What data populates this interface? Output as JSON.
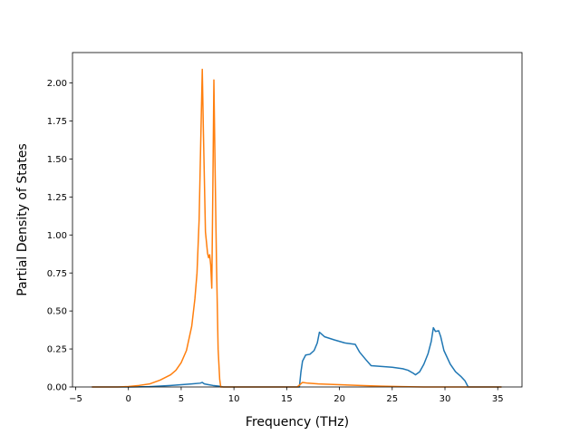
{
  "chart_data": {
    "type": "line",
    "title": "",
    "xlabel": "Frequency (THz)",
    "ylabel": "Partial Density of States",
    "xlim": [
      -5.3,
      37.3
    ],
    "ylim": [
      0,
      2.2
    ],
    "xticks": [
      -5,
      0,
      5,
      10,
      15,
      20,
      25,
      30,
      35
    ],
    "xtick_labels": [
      "−5",
      "0",
      "5",
      "10",
      "15",
      "20",
      "25",
      "30",
      "35"
    ],
    "yticks": [
      0,
      0.25,
      0.5,
      0.75,
      1.0,
      1.25,
      1.5,
      1.75,
      2.0
    ],
    "ytick_labels": [
      "0.00",
      "0.25",
      "0.50",
      "0.75",
      "1.00",
      "1.25",
      "1.50",
      "1.75",
      "2.00"
    ],
    "grid": false,
    "legend": "none",
    "series": [
      {
        "color": "#1f77b4",
        "points": [
          [
            -3.4,
            0
          ],
          [
            0,
            0
          ],
          [
            2,
            0.002
          ],
          [
            4,
            0.01
          ],
          [
            5,
            0.015
          ],
          [
            6,
            0.02
          ],
          [
            6.8,
            0.025
          ],
          [
            7.0,
            0.03
          ],
          [
            7.2,
            0.02
          ],
          [
            7.6,
            0.015
          ],
          [
            8.0,
            0.01
          ],
          [
            8.6,
            0.005
          ],
          [
            9,
            0
          ],
          [
            16.2,
            0
          ],
          [
            16.35,
            0.1
          ],
          [
            16.5,
            0.17
          ],
          [
            16.8,
            0.21
          ],
          [
            17.2,
            0.215
          ],
          [
            17.6,
            0.24
          ],
          [
            17.9,
            0.29
          ],
          [
            18.1,
            0.36
          ],
          [
            18.6,
            0.33
          ],
          [
            19.5,
            0.31
          ],
          [
            20.5,
            0.29
          ],
          [
            21.5,
            0.28
          ],
          [
            21.9,
            0.23
          ],
          [
            22.5,
            0.18
          ],
          [
            23.0,
            0.14
          ],
          [
            24,
            0.135
          ],
          [
            25,
            0.13
          ],
          [
            26,
            0.12
          ],
          [
            26.5,
            0.11
          ],
          [
            27.0,
            0.09
          ],
          [
            27.2,
            0.08
          ],
          [
            27.6,
            0.1
          ],
          [
            28.0,
            0.15
          ],
          [
            28.4,
            0.22
          ],
          [
            28.7,
            0.3
          ],
          [
            28.9,
            0.39
          ],
          [
            29.1,
            0.365
          ],
          [
            29.4,
            0.37
          ],
          [
            29.6,
            0.33
          ],
          [
            29.9,
            0.24
          ],
          [
            30.5,
            0.15
          ],
          [
            31.0,
            0.1
          ],
          [
            31.5,
            0.07
          ],
          [
            31.9,
            0.04
          ],
          [
            32.2,
            0
          ],
          [
            35.3,
            0
          ]
        ]
      },
      {
        "color": "#ff7f0e",
        "points": [
          [
            -3.4,
            0
          ],
          [
            -1,
            0
          ],
          [
            0,
            0.003
          ],
          [
            1,
            0.01
          ],
          [
            2,
            0.02
          ],
          [
            3,
            0.045
          ],
          [
            4,
            0.08
          ],
          [
            4.5,
            0.11
          ],
          [
            5,
            0.16
          ],
          [
            5.5,
            0.24
          ],
          [
            6.0,
            0.4
          ],
          [
            6.3,
            0.58
          ],
          [
            6.5,
            0.75
          ],
          [
            6.7,
            1.1
          ],
          [
            6.85,
            1.6
          ],
          [
            7.0,
            2.09
          ],
          [
            7.1,
            1.7
          ],
          [
            7.3,
            1.02
          ],
          [
            7.5,
            0.88
          ],
          [
            7.6,
            0.85
          ],
          [
            7.7,
            0.87
          ],
          [
            7.8,
            0.8
          ],
          [
            7.9,
            0.65
          ],
          [
            8.0,
            1.3
          ],
          [
            8.1,
            2.02
          ],
          [
            8.2,
            1.5
          ],
          [
            8.35,
            0.8
          ],
          [
            8.5,
            0.25
          ],
          [
            8.65,
            0.05
          ],
          [
            8.75,
            0
          ],
          [
            16.0,
            0
          ],
          [
            16.5,
            0.03
          ],
          [
            17,
            0.025
          ],
          [
            18,
            0.02
          ],
          [
            20,
            0.015
          ],
          [
            22,
            0.01
          ],
          [
            24,
            0.005
          ],
          [
            26,
            0.002
          ],
          [
            28,
            0
          ],
          [
            35.3,
            0
          ]
        ]
      }
    ]
  }
}
